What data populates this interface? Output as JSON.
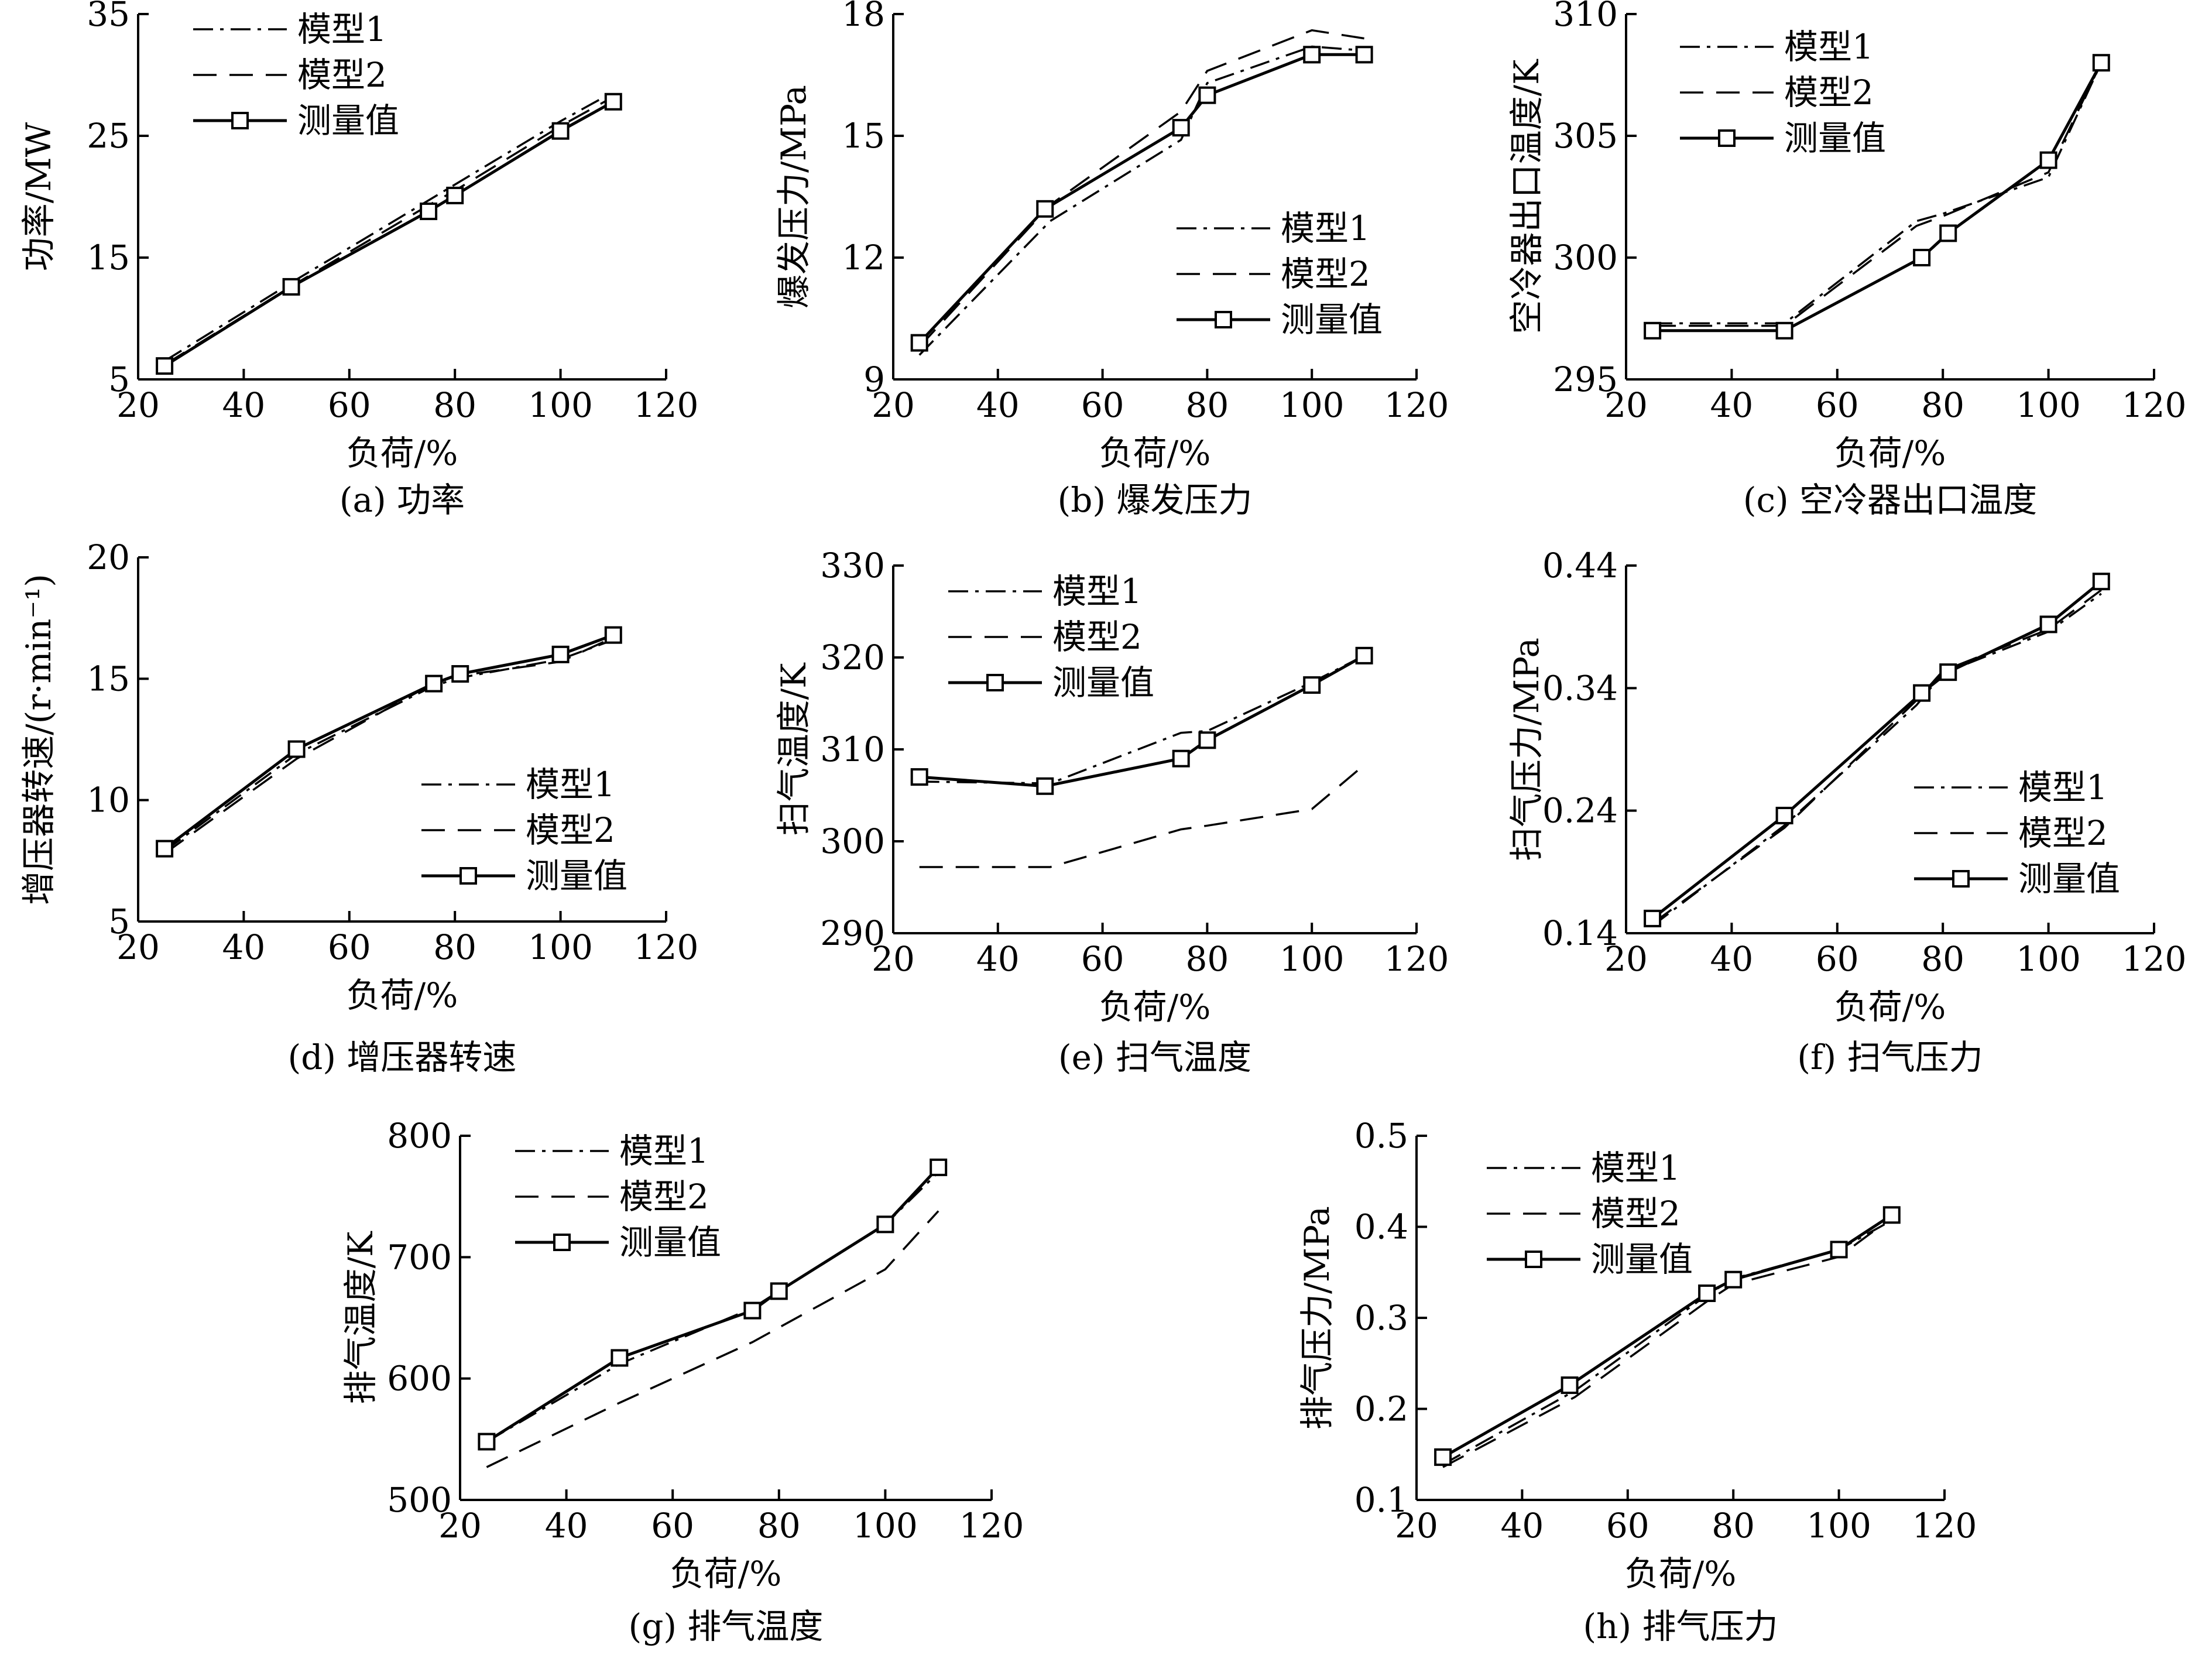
{
  "legend_labels": [
    "模型1",
    "模型2",
    "测量值"
  ],
  "chart_data": [
    {
      "id": "a",
      "type": "line",
      "caption": "(a) 功率",
      "xlabel": "负荷/%",
      "ylabel": "功率/MW",
      "xlim": [
        20,
        120
      ],
      "ylim": [
        5,
        35
      ],
      "xticks": [
        20,
        40,
        60,
        80,
        100,
        120
      ],
      "yticks": [
        5,
        15,
        25,
        35
      ],
      "legend": "top-left",
      "grid": false,
      "series": [
        {
          "name": "模型1",
          "style": "dashdot",
          "x": [
            25,
            50,
            75,
            80,
            100,
            110
          ],
          "y": [
            6.5,
            13.2,
            19.7,
            21.0,
            26.2,
            28.6
          ]
        },
        {
          "name": "模型2",
          "style": "dash",
          "x": [
            25,
            50,
            75,
            80,
            100,
            110
          ],
          "y": [
            6.2,
            12.9,
            19.3,
            20.5,
            25.8,
            28.2
          ]
        },
        {
          "name": "测量值",
          "style": "solid-square",
          "x": [
            25,
            49,
            75,
            80,
            100,
            110
          ],
          "y": [
            6.1,
            12.6,
            18.8,
            20.1,
            25.4,
            27.8
          ]
        }
      ]
    },
    {
      "id": "b",
      "type": "line",
      "caption": "(b) 爆发压力",
      "xlabel": "负荷/%",
      "ylabel": "爆发压力/MPa",
      "xlim": [
        20,
        120
      ],
      "ylim": [
        9,
        18
      ],
      "xticks": [
        20,
        40,
        60,
        80,
        100,
        120
      ],
      "yticks": [
        9,
        12,
        15,
        18
      ],
      "legend": "center-right",
      "grid": false,
      "series": [
        {
          "name": "模型1",
          "style": "dashdot",
          "x": [
            25,
            50,
            75,
            80,
            100,
            110
          ],
          "y": [
            9.6,
            12.9,
            14.9,
            16.3,
            17.2,
            17.1
          ]
        },
        {
          "name": "模型2",
          "style": "dash",
          "x": [
            25,
            50,
            75,
            80,
            100,
            110
          ],
          "y": [
            9.8,
            13.3,
            15.6,
            16.6,
            17.6,
            17.4
          ]
        },
        {
          "name": "测量值",
          "style": "solid-square",
          "x": [
            25,
            49,
            75,
            80,
            100,
            110
          ],
          "y": [
            9.9,
            13.2,
            15.2,
            16.0,
            17.0,
            17.0
          ]
        }
      ]
    },
    {
      "id": "c",
      "type": "line",
      "caption": "(c) 空冷器出口温度",
      "xlabel": "负荷/%",
      "ylabel": "空冷器出口温度/K",
      "xlim": [
        20,
        120
      ],
      "ylim": [
        295,
        310
      ],
      "xticks": [
        20,
        40,
        60,
        80,
        100,
        120
      ],
      "yticks": [
        295,
        300,
        305,
        310
      ],
      "legend": "top-left",
      "grid": false,
      "series": [
        {
          "name": "模型1",
          "style": "dashdot",
          "x": [
            25,
            50,
            75,
            80,
            100,
            110
          ],
          "y": [
            297.3,
            297.3,
            301.5,
            301.8,
            303.3,
            308.0
          ]
        },
        {
          "name": "模型2",
          "style": "dash",
          "x": [
            25,
            50,
            75,
            80,
            100,
            110
          ],
          "y": [
            297.2,
            297.2,
            301.3,
            301.7,
            303.5,
            308.0
          ]
        },
        {
          "name": "测量值",
          "style": "solid-square",
          "x": [
            25,
            50,
            76,
            81,
            100,
            110
          ],
          "y": [
            297.0,
            297.0,
            300.0,
            301.0,
            304.0,
            308.0
          ]
        }
      ]
    },
    {
      "id": "d",
      "type": "line",
      "caption": "(d) 增压器转速",
      "xlabel": "负荷/%",
      "ylabel": "增压器转速/(r·min⁻¹)",
      "xlim": [
        20,
        120
      ],
      "ylim": [
        5,
        20
      ],
      "xticks": [
        20,
        40,
        60,
        80,
        100,
        120
      ],
      "yticks": [
        5,
        10,
        15,
        20
      ],
      "legend": "bottom-right",
      "grid": false,
      "series": [
        {
          "name": "模型1",
          "style": "dashdot",
          "x": [
            25,
            50,
            75,
            80,
            100,
            110
          ],
          "y": [
            7.9,
            11.9,
            14.6,
            15.0,
            15.8,
            16.6
          ]
        },
        {
          "name": "模型2",
          "style": "dash",
          "x": [
            25,
            50,
            75,
            80,
            100,
            110
          ],
          "y": [
            7.8,
            11.7,
            14.7,
            15.1,
            15.7,
            16.7
          ]
        },
        {
          "name": "测量值",
          "style": "solid-square",
          "x": [
            25,
            50,
            76,
            81,
            100,
            110
          ],
          "y": [
            8.0,
            12.1,
            14.8,
            15.2,
            16.0,
            16.8
          ]
        }
      ]
    },
    {
      "id": "e",
      "type": "line",
      "caption": "(e) 扫气温度",
      "xlabel": "负荷/%",
      "ylabel": "扫气温度/K",
      "xlim": [
        20,
        120
      ],
      "ylim": [
        290,
        330
      ],
      "xticks": [
        20,
        40,
        60,
        80,
        100,
        120
      ],
      "yticks": [
        290,
        300,
        310,
        320,
        330
      ],
      "legend": "top-left",
      "grid": false,
      "series": [
        {
          "name": "模型1",
          "style": "dashdot",
          "x": [
            25,
            50,
            75,
            80,
            100,
            110
          ],
          "y": [
            306.5,
            306.3,
            311.8,
            312.0,
            317.3,
            320.2
          ]
        },
        {
          "name": "模型2",
          "style": "dash",
          "x": [
            25,
            50,
            75,
            80,
            100,
            110
          ],
          "y": [
            297.2,
            297.2,
            301.3,
            301.7,
            303.5,
            308.3
          ]
        },
        {
          "name": "测量值",
          "style": "solid-square",
          "x": [
            25,
            49,
            75,
            80,
            100,
            110
          ],
          "y": [
            307.0,
            306.0,
            309.0,
            311.0,
            317.0,
            320.2
          ]
        }
      ]
    },
    {
      "id": "f",
      "type": "line",
      "caption": "(f) 扫气压力",
      "xlabel": "负荷/%",
      "ylabel": "扫气压力/MPa",
      "xlim": [
        20,
        120
      ],
      "ylim": [
        0.14,
        0.44
      ],
      "xticks": [
        20,
        40,
        60,
        80,
        100,
        120
      ],
      "yticks": [
        0.14,
        0.24,
        0.34,
        0.44
      ],
      "legend": "bottom-right",
      "grid": false,
      "series": [
        {
          "name": "模型1",
          "style": "dashdot",
          "x": [
            25,
            50,
            75,
            80,
            100,
            110
          ],
          "y": [
            0.146,
            0.228,
            0.326,
            0.352,
            0.386,
            0.417
          ]
        },
        {
          "name": "模型2",
          "style": "dash",
          "x": [
            25,
            50,
            75,
            80,
            100,
            110
          ],
          "y": [
            0.148,
            0.226,
            0.33,
            0.354,
            0.388,
            0.42
          ]
        },
        {
          "name": "测量值",
          "style": "solid-square",
          "x": [
            25,
            50,
            76,
            81,
            100,
            110
          ],
          "y": [
            0.152,
            0.236,
            0.336,
            0.353,
            0.392,
            0.427
          ]
        }
      ]
    },
    {
      "id": "g",
      "type": "line",
      "caption": "(g) 排气温度",
      "xlabel": "负荷/%",
      "ylabel": "排气温度/K",
      "xlim": [
        20,
        120
      ],
      "ylim": [
        500,
        800
      ],
      "xticks": [
        20,
        40,
        60,
        80,
        100,
        120
      ],
      "yticks": [
        500,
        600,
        700,
        800
      ],
      "legend": "top-left",
      "grid": false,
      "series": [
        {
          "name": "模型1",
          "style": "dashdot",
          "x": [
            25,
            50,
            75,
            80,
            100,
            110
          ],
          "y": [
            548,
            612,
            658,
            672,
            727,
            770
          ]
        },
        {
          "name": "模型2",
          "style": "dash",
          "x": [
            25,
            50,
            75,
            80,
            100,
            110
          ],
          "y": [
            527,
            580,
            630,
            642,
            690,
            738
          ]
        },
        {
          "name": "测量值",
          "style": "solid-square",
          "x": [
            25,
            50,
            75,
            80,
            100,
            110
          ],
          "y": [
            548,
            617,
            656,
            672,
            727,
            774
          ]
        }
      ]
    },
    {
      "id": "h",
      "type": "line",
      "caption": "(h) 排气压力",
      "xlabel": "负荷/%",
      "ylabel": "排气压力/MPa",
      "xlim": [
        20,
        120
      ],
      "ylim": [
        0.1,
        0.5
      ],
      "xticks": [
        20,
        40,
        60,
        80,
        100,
        120
      ],
      "yticks": [
        0.1,
        0.2,
        0.3,
        0.4,
        0.5
      ],
      "legend": "top-left",
      "grid": false,
      "series": [
        {
          "name": "模型1",
          "style": "dashdot",
          "x": [
            25,
            50,
            75,
            80,
            100,
            110
          ],
          "y": [
            0.139,
            0.22,
            0.325,
            0.343,
            0.375,
            0.407
          ]
        },
        {
          "name": "模型2",
          "style": "dash",
          "x": [
            25,
            50,
            75,
            80,
            100,
            110
          ],
          "y": [
            0.136,
            0.213,
            0.318,
            0.337,
            0.367,
            0.41
          ]
        },
        {
          "name": "测量值",
          "style": "solid-square",
          "x": [
            25,
            49,
            75,
            80,
            100,
            110
          ],
          "y": [
            0.147,
            0.226,
            0.327,
            0.342,
            0.375,
            0.413
          ]
        }
      ]
    }
  ]
}
